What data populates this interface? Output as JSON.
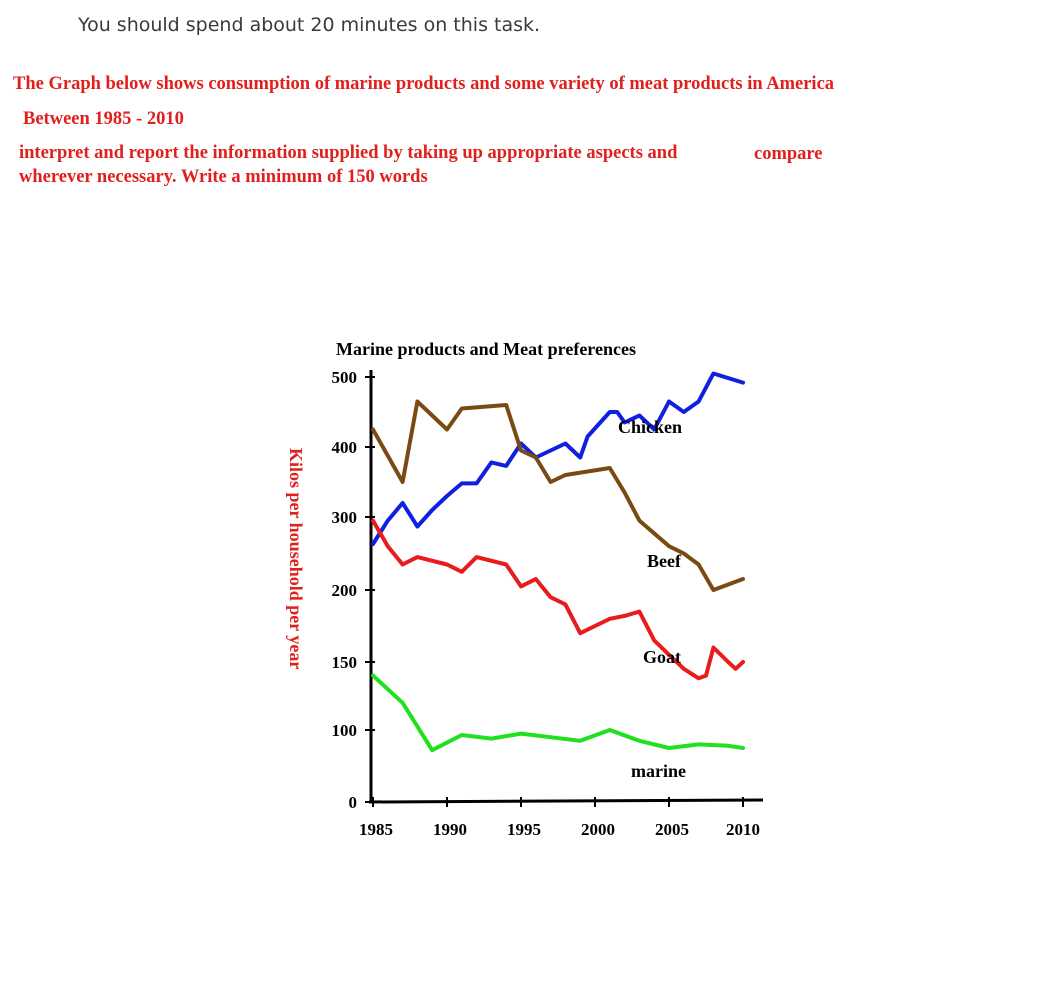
{
  "header": {
    "instruction": "You should spend about 20 minutes on this task."
  },
  "prompt": {
    "line1": "The Graph below shows consumption of marine products and some variety of meat products in America",
    "line2": "Between 1985 - 2010",
    "line3a": "interpret and report the information supplied by taking up appropriate aspects and",
    "line3b": "compare",
    "line4": "wherever necessary. Write a minimum of 150 words"
  },
  "colors": {
    "prompt_text": "#e0201c",
    "ylabel": "#e0201c",
    "chicken": "#1020e0",
    "beef": "#7a4a12",
    "goat": "#e81c1c",
    "marine": "#20e020"
  },
  "chart_data": {
    "type": "line",
    "title": "Marine products and Meat  preferences",
    "xlabel": "",
    "ylabel": "Kilos per household per year",
    "x_ticks": [
      "1985",
      "1990",
      "1995",
      "2000",
      "2005",
      "2010"
    ],
    "y_ticks": [
      "0",
      "100",
      "150",
      "200",
      "300",
      "400",
      "500"
    ],
    "xlim": [
      1985,
      2010
    ],
    "ylim": [
      0,
      500
    ],
    "grid": false,
    "legend": "inline labels",
    "series": [
      {
        "name": "Chicken",
        "color": "#1020e0",
        "x": [
          1985,
          1986,
          1987,
          1988,
          1989,
          1990,
          1991,
          1992,
          1993,
          1994,
          1995,
          1996,
          1997,
          1998,
          1999,
          1999.5,
          2001,
          2001.5,
          2002,
          2003,
          2004,
          2005,
          2006,
          2007,
          2008,
          2010
        ],
        "y": [
          263,
          295,
          320,
          287,
          310,
          330,
          348,
          348,
          378,
          373,
          405,
          385,
          395,
          405,
          385,
          415,
          450,
          450,
          435,
          445,
          425,
          465,
          450,
          465,
          505,
          492
        ]
      },
      {
        "name": "Beef",
        "color": "#7a4a12",
        "x": [
          1985,
          1987,
          1988,
          1990,
          1991,
          1994,
          1995,
          1996,
          1997,
          1998,
          2001,
          2002,
          2003,
          2005,
          2006,
          2007,
          2008,
          2010
        ],
        "y": [
          425,
          350,
          465,
          425,
          455,
          460,
          395,
          385,
          350,
          360,
          370,
          335,
          295,
          260,
          250,
          235,
          200,
          215
        ]
      },
      {
        "name": "Goat",
        "color": "#e81c1c",
        "x": [
          1985,
          1986,
          1987,
          1988,
          1990,
          1991,
          1992,
          1994,
          1995,
          1996,
          1997,
          1998,
          1999,
          2000,
          2001,
          2002,
          2003,
          2004,
          2004.5,
          2005,
          2006,
          2007,
          2007.5,
          2008,
          2009,
          2009.5,
          2010
        ],
        "y": [
          295,
          260,
          235,
          245,
          235,
          225,
          245,
          235,
          205,
          215,
          195,
          190,
          170,
          175,
          180,
          182,
          185,
          165,
          160,
          155,
          145,
          138,
          140,
          160,
          150,
          145,
          150
        ]
      },
      {
        "name": "marine",
        "color": "#20e020",
        "x": [
          1985,
          1987,
          1989,
          1991,
          1993,
          1995,
          1997,
          1999,
          2001,
          2003,
          2005,
          2007,
          2009,
          2010
        ],
        "y": [
          140,
          120,
          72,
          93,
          88,
          95,
          90,
          85,
          100,
          85,
          75,
          80,
          78,
          75
        ]
      }
    ]
  }
}
